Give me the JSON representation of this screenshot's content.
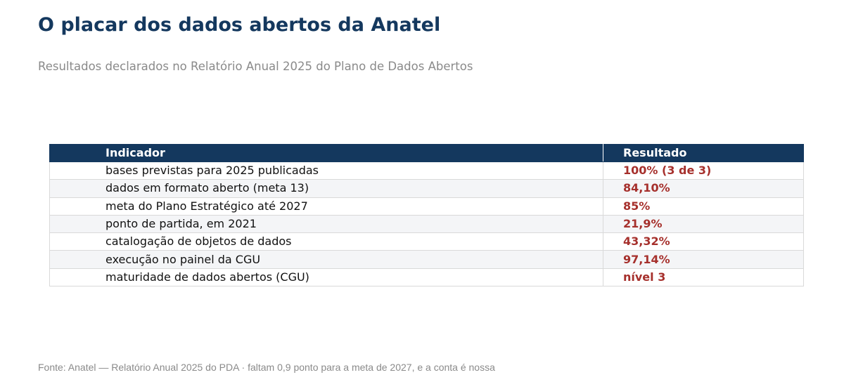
{
  "title": "O placar dos dados abertos da Anatel",
  "subtitle": "Resultados declarados no Relatório Anual 2025 do Plano de Dados Abertos",
  "source": "Fonte: Anatel — Relatório Anual 2025 do PDA · faltam 0,9 ponto para a meta de 2027, e a conta é nossa",
  "colors": {
    "header_bg": "#14385e",
    "title": "#14385e",
    "result_text": "#a6302c",
    "stripe": "#f4f5f7",
    "muted_text": "#8a8a8a"
  },
  "chart_data": {
    "type": "table",
    "columns": [
      "Indicador",
      "Resultado"
    ],
    "rows": [
      {
        "indicator": "bases previstas para 2025 publicadas",
        "result": "100% (3 de 3)"
      },
      {
        "indicator": "dados em formato aberto (meta 13)",
        "result": "84,10%"
      },
      {
        "indicator": "meta do Plano Estratégico até 2027",
        "result": "85%"
      },
      {
        "indicator": "ponto de partida, em 2021",
        "result": "21,9%"
      },
      {
        "indicator": "catalogação de objetos de dados",
        "result": "43,32%"
      },
      {
        "indicator": "execução no painel da CGU",
        "result": "97,14%"
      },
      {
        "indicator": "maturidade de dados abertos (CGU)",
        "result": "nível 3"
      }
    ]
  }
}
